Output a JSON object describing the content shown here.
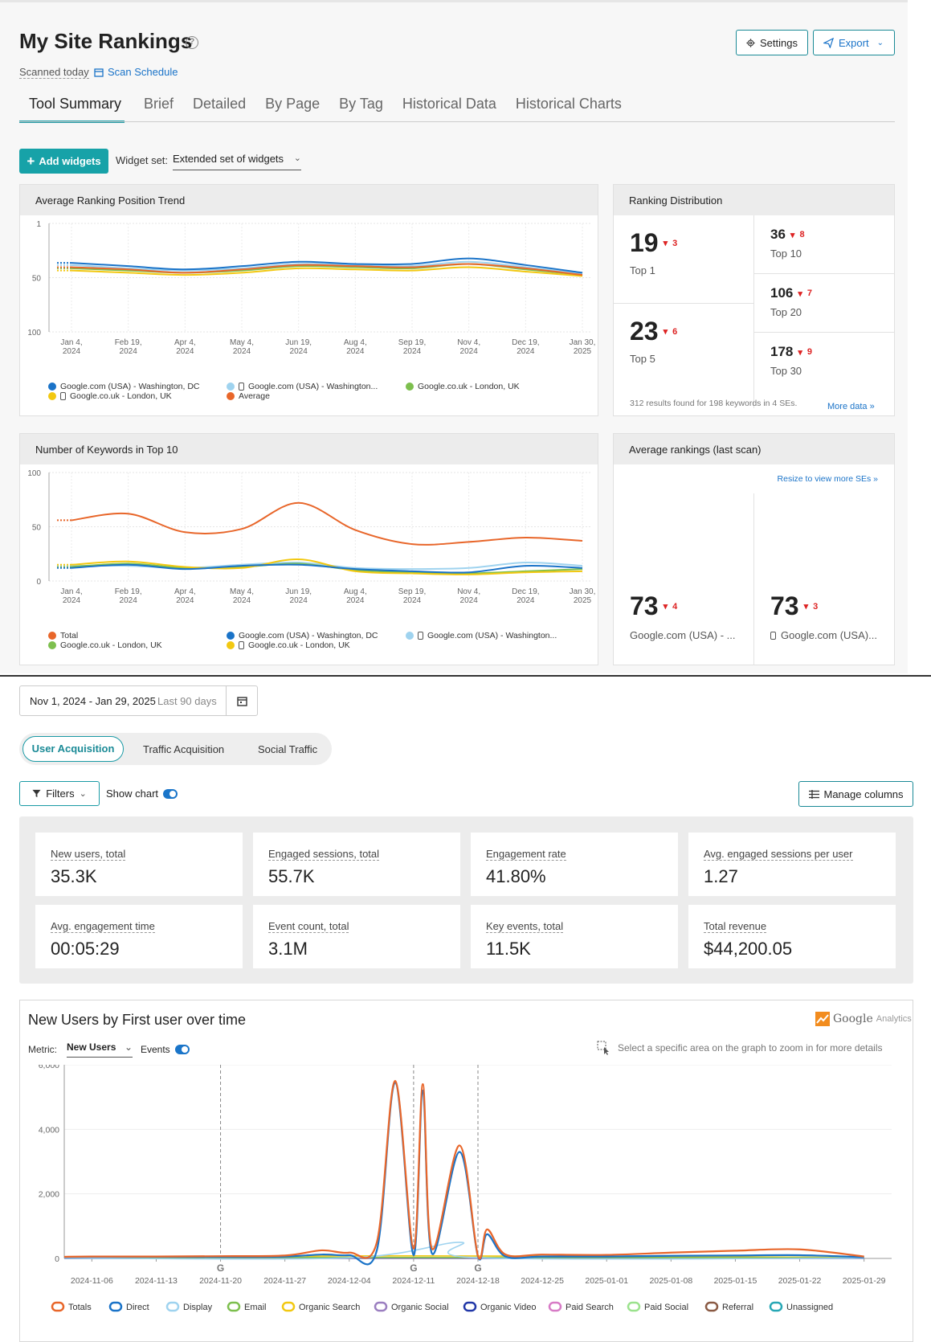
{
  "header": {
    "title": "My Site Rankings",
    "scanned": "Scanned today",
    "scan_schedule": "Scan Schedule",
    "settings": "Settings",
    "export": "Export"
  },
  "tabs": [
    "Tool Summary",
    "Brief",
    "Detailed",
    "By Page",
    "By Tag",
    "Historical Data",
    "Historical Charts"
  ],
  "toolbar": {
    "add_widgets": "Add widgets",
    "widget_set_label": "Widget set:",
    "widget_set_value": "Extended set of widgets"
  },
  "avg_position_widget": {
    "title": "Average Ranking Position Trend",
    "legend": [
      {
        "label": "Google.com (USA) - Washington, DC",
        "color": "#1a73c8",
        "mobile": false
      },
      {
        "label": "Google.com (USA) - Washington...",
        "color": "#9fd3ef",
        "mobile": true
      },
      {
        "label": "Google.co.uk - London, UK",
        "color": "#7dbf4e",
        "mobile": false
      },
      {
        "label": "Google.co.uk - London, UK",
        "color": "#f2c811",
        "mobile": true
      },
      {
        "label": "Average",
        "color": "#e8662a",
        "mobile": false
      }
    ]
  },
  "ranking_distribution": {
    "title": "Ranking Distribution",
    "items": [
      {
        "value": "19",
        "delta": "3",
        "label": "Top 1"
      },
      {
        "value": "23",
        "delta": "6",
        "label": "Top 5"
      },
      {
        "value": "36",
        "delta": "8",
        "label": "Top 10"
      },
      {
        "value": "106",
        "delta": "7",
        "label": "Top 20"
      },
      {
        "value": "178",
        "delta": "9",
        "label": "Top 30"
      }
    ],
    "footer": "312 results found for 198 keywords in 4 SEs.",
    "more_data": "More data"
  },
  "top10_widget": {
    "title": "Number of Keywords in Top 10",
    "legend": [
      {
        "label": "Total",
        "color": "#e8662a",
        "mobile": false
      },
      {
        "label": "Google.co.uk - London, UK",
        "color": "#7dbf4e",
        "mobile": false
      },
      {
        "label": "Google.com (USA) - Washington, DC",
        "color": "#1a73c8",
        "mobile": false
      },
      {
        "label": "Google.co.uk - London, UK",
        "color": "#f2c811",
        "mobile": true
      },
      {
        "label": "Google.com (USA) - Washington...",
        "color": "#9fd3ef",
        "mobile": true
      }
    ]
  },
  "avg_rankings_widget": {
    "title": "Average rankings (last scan)",
    "resize_link": "Resize to view more SEs",
    "items": [
      {
        "value": "73",
        "delta": "4",
        "label": "Google.com (USA) - ..."
      },
      {
        "value": "73",
        "delta": "3",
        "label": "Google.com (USA)..."
      }
    ]
  },
  "small_charts": [
    {
      "type": "line",
      "title": "Average Ranking Position Trend",
      "x": [
        "Jan 4, 2024",
        "Feb 19, 2024",
        "Apr 4, 2024",
        "May 4, 2024",
        "Jun 19, 2024",
        "Aug 4, 2024",
        "Sep 19, 2024",
        "Nov 4, 2024",
        "Dec 19, 2024",
        "Jan 30, 2025"
      ],
      "y_ticks": [
        "1",
        "50",
        "100"
      ],
      "ylim": [
        100,
        1
      ],
      "inverted": true,
      "series": [
        {
          "name": "Google.com (USA) - Washington, DC",
          "values": [
            37,
            40,
            43,
            40,
            36,
            38,
            38,
            33,
            39,
            46
          ]
        },
        {
          "name": "Google.com (USA) - Washington...",
          "values": [
            39,
            42,
            44,
            42,
            38,
            39,
            40,
            36,
            41,
            47
          ]
        },
        {
          "name": "Google.co.uk - London, UK",
          "values": [
            42,
            44,
            46,
            44,
            40,
            41,
            42,
            38,
            43,
            48
          ]
        },
        {
          "name": "Google.co.uk - London, UK",
          "values": [
            44,
            46,
            48,
            46,
            42,
            43,
            44,
            41,
            45,
            49
          ]
        },
        {
          "name": "Average",
          "values": [
            41,
            43,
            46,
            43,
            39,
            40,
            41,
            38,
            42,
            48
          ]
        }
      ]
    },
    {
      "type": "line",
      "title": "Number of Keywords in Top 10",
      "x": [
        "Jan 4, 2024",
        "Feb 19, 2024",
        "Apr 4, 2024",
        "May 4, 2024",
        "Jun 19, 2024",
        "Aug 4, 2024",
        "Sep 19, 2024",
        "Nov 4, 2024",
        "Dec 19, 2024",
        "Jan 30, 2025"
      ],
      "y_ticks": [
        "100",
        "50",
        "0"
      ],
      "ylim": [
        0,
        100
      ],
      "series": [
        {
          "name": "Total",
          "values": [
            56,
            62,
            45,
            48,
            72,
            47,
            34,
            36,
            40,
            37
          ]
        },
        {
          "name": "Google.co.uk - London, UK",
          "values": [
            13,
            16,
            12,
            13,
            16,
            10,
            8,
            7,
            9,
            11
          ]
        },
        {
          "name": "Google.com (USA) - Washington, DC",
          "values": [
            12,
            15,
            11,
            14,
            15,
            11,
            9,
            8,
            14,
            12
          ]
        },
        {
          "name": "Google.co.uk - London, UK",
          "values": [
            15,
            18,
            13,
            12,
            20,
            9,
            7,
            6,
            8,
            9
          ]
        },
        {
          "name": "Google.com (USA) - Washington...",
          "values": [
            14,
            14,
            12,
            15,
            17,
            12,
            11,
            12,
            17,
            14
          ]
        }
      ]
    }
  ],
  "ga": {
    "date_range": "Nov 1, 2024 - Jan 29, 2025",
    "date_hint": "Last 90 days",
    "segments": [
      "User Acquisition",
      "Traffic Acquisition",
      "Social Traffic"
    ],
    "filters": "Filters",
    "show_chart": "Show chart",
    "manage_columns": "Manage columns",
    "metrics": [
      {
        "label": "New users, total",
        "value": "35.3K"
      },
      {
        "label": "Engaged sessions, total",
        "value": "55.7K"
      },
      {
        "label": "Engagement rate",
        "value": "41.80%"
      },
      {
        "label": "Avg. engaged sessions per user",
        "value": "1.27"
      },
      {
        "label": "Avg. engagement time",
        "value": "00:05:29"
      },
      {
        "label": "Event count, total",
        "value": "3.1M"
      },
      {
        "label": "Key events, total",
        "value": "11.5K"
      },
      {
        "label": "Total revenue",
        "value": "$44,200.05"
      }
    ],
    "chart_title": "New Users by First user over time",
    "ga_logo_google": "Google",
    "ga_logo_analytics": "Analytics",
    "metric_label": "Metric:",
    "metric_value": "New Users",
    "events_label": "Events",
    "zoom_hint": "Select a specific area on the graph to zoom in for more details"
  },
  "chart_data": {
    "type": "line",
    "title": "New Users by First user over time",
    "x": [
      "2024-11-06",
      "2024-11-13",
      "2024-11-20",
      "2024-11-27",
      "2024-12-04",
      "2024-12-11",
      "2024-12-18",
      "2024-12-25",
      "2025-01-01",
      "2025-01-08",
      "2025-01-15",
      "2025-01-22",
      "2025-01-29"
    ],
    "y_ticks": [
      "6,000",
      "4,000",
      "2,000",
      "0"
    ],
    "ylim": [
      0,
      6000
    ],
    "annotation_dates": [
      "2024-11-20",
      "2024-12-11",
      "2024-12-18"
    ],
    "annotation_marker": "G",
    "series": [
      {
        "name": "Totals",
        "color": "#e8662a",
        "points": [
          [
            "2024-11-03",
            50
          ],
          [
            "2024-11-06",
            60
          ],
          [
            "2024-11-13",
            60
          ],
          [
            "2024-11-20",
            70
          ],
          [
            "2024-11-27",
            90
          ],
          [
            "2024-12-01",
            250
          ],
          [
            "2024-12-04",
            180
          ],
          [
            "2024-12-07",
            500
          ],
          [
            "2024-12-09",
            5500
          ],
          [
            "2024-12-11",
            300
          ],
          [
            "2024-12-12",
            5400
          ],
          [
            "2024-12-13",
            300
          ],
          [
            "2024-12-16",
            3500
          ],
          [
            "2024-12-18",
            80
          ],
          [
            "2024-12-19",
            900
          ],
          [
            "2024-12-21",
            120
          ],
          [
            "2024-12-25",
            120
          ],
          [
            "2025-01-01",
            110
          ],
          [
            "2025-01-08",
            180
          ],
          [
            "2025-01-15",
            240
          ],
          [
            "2025-01-22",
            280
          ],
          [
            "2025-01-29",
            60
          ]
        ]
      },
      {
        "name": "Direct",
        "color": "#1a73c8",
        "points": [
          [
            "2024-11-03",
            40
          ],
          [
            "2024-11-06",
            50
          ],
          [
            "2024-11-13",
            50
          ],
          [
            "2024-11-20",
            50
          ],
          [
            "2024-11-27",
            60
          ],
          [
            "2024-12-01",
            120
          ],
          [
            "2024-12-04",
            100
          ],
          [
            "2024-12-07",
            250
          ],
          [
            "2024-12-09",
            5450
          ],
          [
            "2024-12-11",
            100
          ],
          [
            "2024-12-12",
            5200
          ],
          [
            "2024-12-13",
            150
          ],
          [
            "2024-12-16",
            3300
          ],
          [
            "2024-12-18",
            60
          ],
          [
            "2024-12-19",
            750
          ],
          [
            "2024-12-21",
            60
          ],
          [
            "2024-12-25",
            60
          ],
          [
            "2025-01-01",
            60
          ],
          [
            "2025-01-08",
            80
          ],
          [
            "2025-01-15",
            90
          ],
          [
            "2025-01-22",
            100
          ],
          [
            "2025-01-29",
            40
          ]
        ]
      },
      {
        "name": "Display",
        "color": "#9fd3ef",
        "points": [
          [
            "2024-11-03",
            10
          ],
          [
            "2024-12-04",
            20
          ],
          [
            "2024-12-16",
            500
          ],
          [
            "2024-12-18",
            20
          ],
          [
            "2025-01-29",
            10
          ]
        ]
      },
      {
        "name": "Email",
        "color": "#7dbf4e",
        "points": [
          [
            "2024-11-03",
            20
          ],
          [
            "2024-12-04",
            30
          ],
          [
            "2025-01-29",
            20
          ]
        ]
      },
      {
        "name": "Organic Search",
        "color": "#f2c811",
        "points": [
          [
            "2024-11-03",
            30
          ],
          [
            "2024-12-11",
            80
          ],
          [
            "2025-01-29",
            30
          ]
        ]
      },
      {
        "name": "Organic Social",
        "color": "#9b7fc0",
        "points": [
          [
            "2024-11-03",
            5
          ],
          [
            "2025-01-29",
            5
          ]
        ]
      },
      {
        "name": "Organic Video",
        "color": "#2238a8",
        "points": [
          [
            "2024-11-03",
            5
          ],
          [
            "2025-01-29",
            5
          ]
        ]
      },
      {
        "name": "Paid Search",
        "color": "#d77bc6",
        "points": [
          [
            "2024-11-03",
            5
          ],
          [
            "2025-01-29",
            5
          ]
        ]
      },
      {
        "name": "Paid Social",
        "color": "#9be28d",
        "points": [
          [
            "2024-11-03",
            5
          ],
          [
            "2025-01-29",
            5
          ]
        ]
      },
      {
        "name": "Referral",
        "color": "#8a5a44",
        "points": [
          [
            "2024-11-03",
            10
          ],
          [
            "2025-01-29",
            10
          ]
        ]
      },
      {
        "name": "Unassigned",
        "color": "#27a7b5",
        "points": [
          [
            "2024-11-03",
            5
          ],
          [
            "2025-01-29",
            5
          ]
        ]
      }
    ]
  }
}
